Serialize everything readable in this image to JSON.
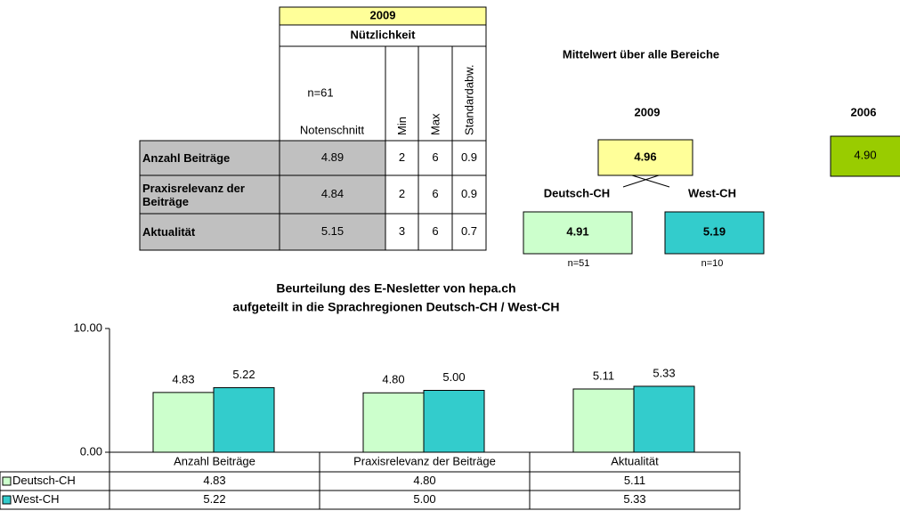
{
  "table": {
    "year": "2009",
    "group": "Nützlichkeit",
    "n": "n=61",
    "columns": [
      "Notenschnitt",
      "Min",
      "Max",
      "Standardabw."
    ],
    "rows": [
      [
        "Anzahl Beiträge",
        "4.89",
        "2",
        "6",
        "0.9"
      ],
      [
        "Praxisrelevanz der Beiträge",
        "4.84",
        "2",
        "6",
        "0.9"
      ],
      [
        "Aktualität",
        "5.15",
        "3",
        "6",
        "0.7"
      ]
    ]
  },
  "summary": {
    "title": "Mittelwert über alle Bereiche",
    "year": "2009",
    "mean": "4.96",
    "previous_year": "2006",
    "previous_mean": "4.90",
    "regions": [
      {
        "name": "Deutsch-CH",
        "mean": "4.91",
        "n": "n=51"
      },
      {
        "name": "West-CH",
        "mean": "5.19",
        "n": "n=10"
      }
    ]
  },
  "chart_data": {
    "type": "bar",
    "title": "Beurteilung des E-Nesletter von hepa.ch",
    "subtitle": "aufgeteilt in die Sprachregionen Deutsch-CH / West-CH",
    "categories": [
      "Anzahl Beiträge",
      "Praxisrelevanz der Beiträge",
      "Aktualität"
    ],
    "series": [
      {
        "name": "Deutsch-CH",
        "color": "#ccffcc",
        "values": [
          4.83,
          4.8,
          5.11
        ],
        "value_labels": [
          "4.83",
          "4.80",
          "5.11"
        ]
      },
      {
        "name": "West-CH",
        "color": "#33cccc",
        "values": [
          5.22,
          5,
          5.33
        ],
        "value_labels": [
          "5.22",
          "5.00",
          "5.33"
        ]
      }
    ],
    "ylim": [
      0,
      10
    ],
    "yticks": [
      {
        "value": 0,
        "label": "0.00"
      },
      {
        "value": 10,
        "label": "10.00"
      }
    ]
  }
}
